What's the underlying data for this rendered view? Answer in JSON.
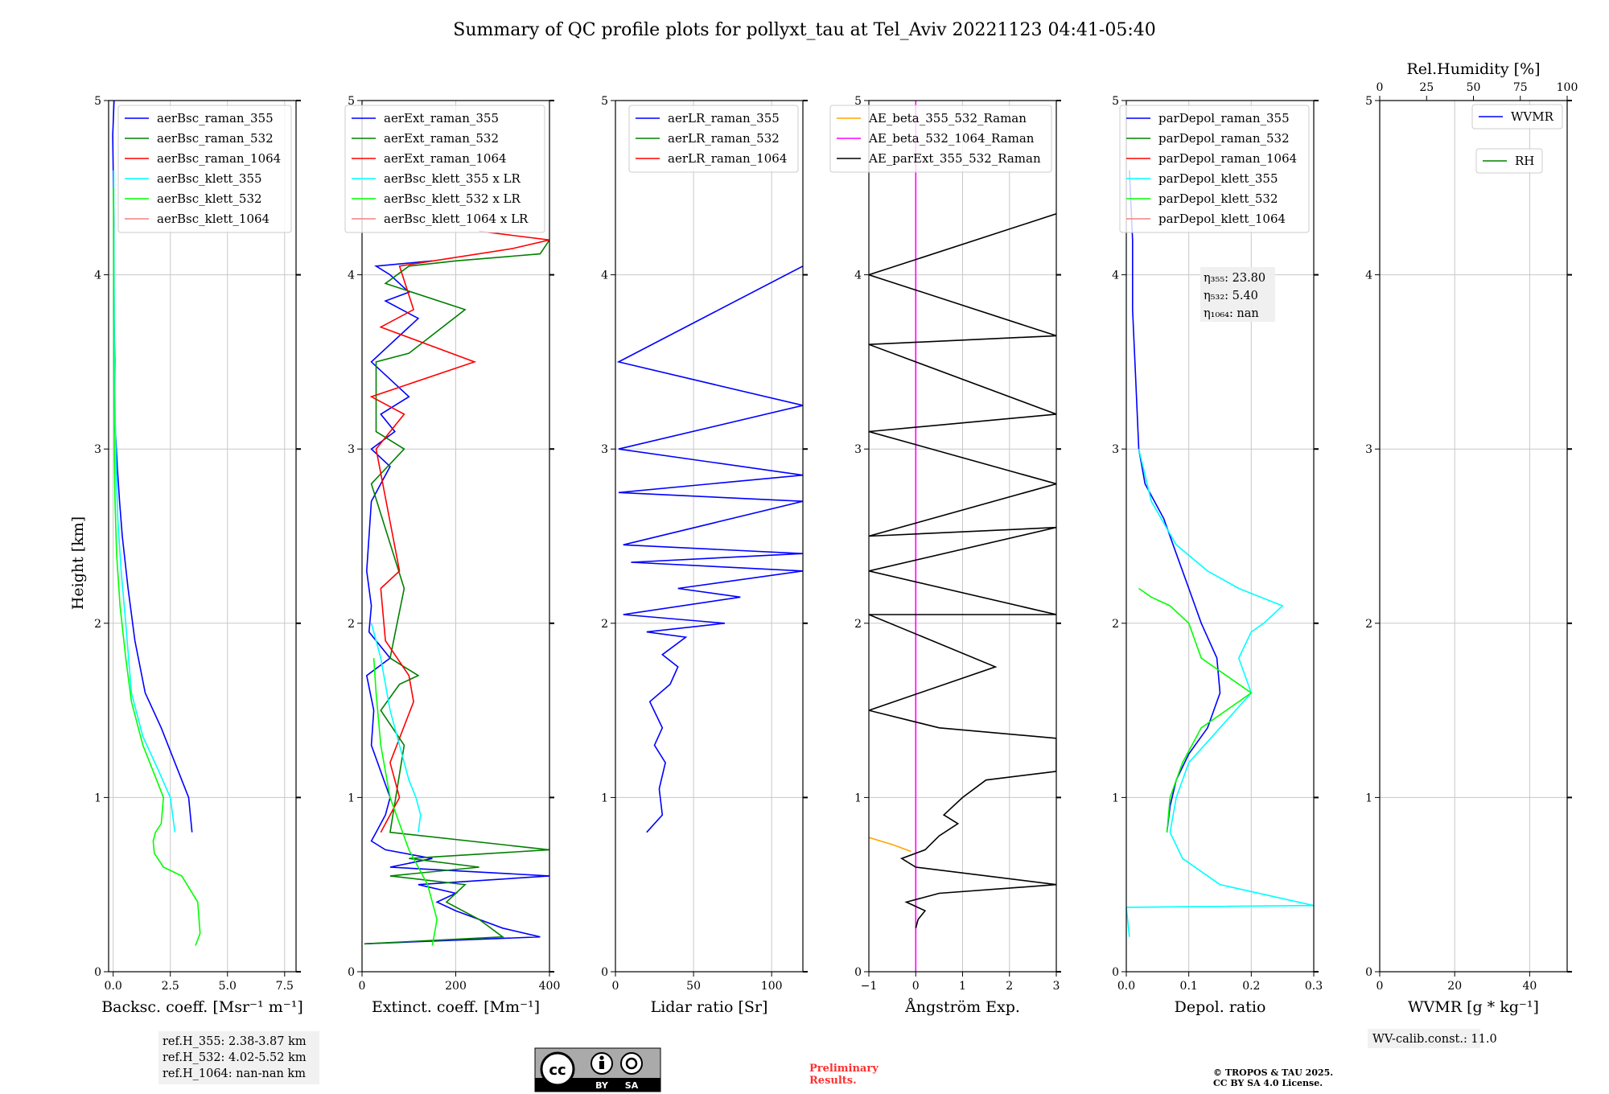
{
  "figure": {
    "title": "Summary of QC profile plots for pollyxt_tau at Tel_Aviv 20221123 04:41-05:40",
    "ylabel": "Height [km]"
  },
  "chart_data": [
    {
      "type": "line",
      "xlabel": "Backsc. coeff. [Msr⁻¹ m⁻¹]",
      "xlim": [
        -0.2,
        8.0
      ],
      "ylim": [
        0,
        5
      ],
      "xticks": [
        0,
        2.5,
        5.0,
        7.5
      ],
      "xtick_labels": [
        "0.0",
        "2.5",
        "5.0",
        "7.5"
      ],
      "yticks": [
        0,
        1,
        2,
        3,
        4,
        5
      ],
      "ytick_labels": [
        "0",
        "1",
        "2",
        "3",
        "4",
        "5"
      ],
      "grid": true,
      "legend_position": "top-right",
      "series": [
        {
          "name": "aerBsc_raman_355",
          "color": "#0000ff",
          "x": [
            3.45,
            3.3,
            2.7,
            2.1,
            1.4,
            0.95,
            0.65,
            0.4,
            0.28,
            0.18,
            0.1,
            0.05,
            0.07,
            0.03,
            0.02,
            0.03,
            0.0,
            -0.02,
            0.04
          ],
          "y": [
            0.8,
            1.0,
            1.2,
            1.4,
            1.6,
            1.9,
            2.2,
            2.5,
            2.7,
            2.9,
            3.1,
            3.3,
            3.5,
            3.8,
            4.0,
            4.3,
            4.6,
            4.8,
            5.0
          ]
        },
        {
          "name": "aerBsc_raman_532",
          "color": "#008000",
          "x": [],
          "y": []
        },
        {
          "name": "aerBsc_raman_1064",
          "color": "#ff0000",
          "x": [],
          "y": []
        },
        {
          "name": "aerBsc_klett_355",
          "color": "#00ffff",
          "x": [
            2.7,
            2.5,
            2.0,
            1.3,
            0.8,
            0.55,
            0.35,
            0.2,
            0.13,
            0.1,
            0.06,
            0.05,
            0.04,
            0.03,
            0.02
          ],
          "y": [
            0.8,
            1.0,
            1.15,
            1.35,
            1.6,
            2.0,
            2.3,
            2.6,
            2.9,
            3.1,
            3.4,
            3.7,
            4.0,
            4.3,
            4.6
          ]
        },
        {
          "name": "aerBsc_klett_532",
          "color": "#00ff00",
          "x": [
            3.6,
            3.8,
            3.7,
            3.0,
            2.2,
            1.8,
            1.75,
            1.85,
            2.1,
            2.2,
            1.9,
            1.3,
            0.8,
            0.55,
            0.3,
            0.15,
            0.08,
            0.05,
            0.03,
            0.02,
            0.01
          ],
          "y": [
            0.15,
            0.22,
            0.4,
            0.55,
            0.6,
            0.68,
            0.75,
            0.8,
            0.85,
            1.0,
            1.1,
            1.3,
            1.55,
            1.8,
            2.1,
            2.4,
            2.7,
            3.0,
            3.5,
            4.0,
            4.5
          ]
        },
        {
          "name": "aerBsc_klett_1064",
          "color": "#f08080",
          "x": [],
          "y": []
        }
      ]
    },
    {
      "type": "line",
      "xlabel": "Extinct. coeff. [Mm⁻¹]",
      "xlim": [
        0,
        400
      ],
      "ylim": [
        0,
        5
      ],
      "xticks": [
        0,
        200,
        400
      ],
      "xtick_labels": [
        "0",
        "200",
        "400"
      ],
      "yticks": [
        0,
        1,
        2,
        3,
        4,
        5
      ],
      "ytick_labels": [
        "0",
        "1",
        "2",
        "3",
        "4",
        "5"
      ],
      "grid": true,
      "legend_position": "top-right",
      "series": [
        {
          "name": "aerExt_raman_355",
          "color": "#0000ff",
          "x": [
            5,
            380,
            300,
            250,
            200,
            160,
            200,
            120,
            400,
            60,
            150,
            50,
            20,
            30,
            50,
            60,
            20,
            25,
            10,
            60,
            15,
            20,
            10,
            15,
            20,
            60,
            20,
            70,
            40,
            100,
            20,
            60,
            120,
            50,
            100,
            80,
            60,
            30,
            150
          ],
          "y": [
            0.16,
            0.2,
            0.25,
            0.3,
            0.35,
            0.4,
            0.45,
            0.5,
            0.55,
            0.6,
            0.65,
            0.7,
            0.75,
            0.8,
            0.9,
            1.0,
            1.3,
            1.5,
            1.7,
            1.8,
            1.95,
            2.1,
            2.3,
            2.5,
            2.7,
            2.9,
            3.0,
            3.1,
            3.2,
            3.3,
            3.5,
            3.6,
            3.75,
            3.85,
            3.9,
            3.95,
            4.0,
            4.05,
            4.08
          ]
        },
        {
          "name": "aerExt_raman_532",
          "color": "#008000",
          "x": [
            5,
            300,
            250,
            180,
            220,
            60,
            250,
            100,
            400,
            60,
            90,
            40,
            80,
            120,
            60,
            90,
            20,
            90,
            30,
            30,
            100,
            220,
            50,
            100,
            200,
            380,
            400
          ],
          "y": [
            0.16,
            0.2,
            0.3,
            0.4,
            0.5,
            0.55,
            0.6,
            0.65,
            0.7,
            0.8,
            1.3,
            1.5,
            1.65,
            1.7,
            1.8,
            2.2,
            2.8,
            3.0,
            3.1,
            3.5,
            3.55,
            3.8,
            3.95,
            4.05,
            4.08,
            4.12,
            4.2
          ]
        },
        {
          "name": "aerExt_raman_1064",
          "color": "#ff0000",
          "x": [
            40,
            80,
            60,
            110,
            100,
            50,
            40,
            80,
            30,
            90,
            20,
            240,
            40,
            110,
            80,
            320,
            400,
            250
          ],
          "y": [
            0.8,
            1.0,
            1.2,
            1.55,
            1.7,
            1.9,
            2.2,
            2.3,
            3.0,
            3.2,
            3.3,
            3.5,
            3.7,
            3.8,
            4.05,
            4.15,
            4.2,
            4.25
          ]
        },
        {
          "name": "aerBsc_klett_355 x LR",
          "color": "#00ffff",
          "x": [
            120,
            125,
            115,
            100,
            80,
            60,
            40,
            20
          ],
          "y": [
            0.8,
            0.9,
            1.0,
            1.1,
            1.3,
            1.5,
            1.8,
            2.0
          ]
        },
        {
          "name": "aerBsc_klett_532 x LR",
          "color": "#00ff00",
          "x": [
            150,
            160,
            140,
            100,
            60,
            40,
            30,
            25
          ],
          "y": [
            0.15,
            0.3,
            0.5,
            0.7,
            1.0,
            1.3,
            1.6,
            1.8
          ]
        },
        {
          "name": "aerBsc_klett_1064 x LR",
          "color": "#f08080",
          "x": [],
          "y": []
        }
      ]
    },
    {
      "type": "line",
      "xlabel": "Lidar ratio [Sr]",
      "xlim": [
        0,
        120
      ],
      "ylim": [
        0,
        5
      ],
      "xticks": [
        0,
        50,
        100
      ],
      "xtick_labels": [
        "0",
        "50",
        "100"
      ],
      "yticks": [
        0,
        1,
        2,
        3,
        4,
        5
      ],
      "ytick_labels": [
        "0",
        "1",
        "2",
        "3",
        "4",
        "5"
      ],
      "grid": true,
      "legend_position": "top-right",
      "series": [
        {
          "name": "aerLR_raman_355",
          "color": "#0000ff",
          "x": [
            20,
            30,
            28,
            32,
            25,
            30,
            22,
            35,
            40,
            30,
            45,
            20,
            70,
            5,
            80,
            40,
            120,
            10,
            120,
            5,
            120,
            2,
            120,
            2,
            120,
            2,
            120
          ],
          "y": [
            0.8,
            0.9,
            1.05,
            1.2,
            1.3,
            1.4,
            1.55,
            1.65,
            1.75,
            1.82,
            1.92,
            1.95,
            2.0,
            2.05,
            2.15,
            2.2,
            2.3,
            2.35,
            2.4,
            2.45,
            2.7,
            2.75,
            2.85,
            3.0,
            3.25,
            3.5,
            4.05
          ]
        },
        {
          "name": "aerLR_raman_532",
          "color": "#008000",
          "x": [],
          "y": []
        },
        {
          "name": "aerLR_raman_1064",
          "color": "#ff0000",
          "x": [],
          "y": []
        }
      ]
    },
    {
      "type": "line",
      "xlabel": "Ångström Exp.",
      "xlim": [
        -1,
        3
      ],
      "ylim": [
        0,
        5
      ],
      "xticks": [
        -1,
        0,
        1,
        2,
        3
      ],
      "xtick_labels": [
        "−1",
        "0",
        "1",
        "2",
        "3"
      ],
      "yticks": [
        0,
        1,
        2,
        3,
        4,
        5
      ],
      "ytick_labels": [
        "0",
        "1",
        "2",
        "3",
        "4",
        "5"
      ],
      "grid": true,
      "legend_position": "top-right",
      "series": [
        {
          "name": "AE_beta_355_532_Raman",
          "color": "#ffa500",
          "x": [
            -1.0,
            -0.5,
            -0.1
          ],
          "y": [
            0.77,
            0.73,
            0.69
          ]
        },
        {
          "name": "AE_beta_532_1064_Raman",
          "color": "#ff00ff",
          "x": [
            0.0,
            0.0
          ],
          "y": [
            0.0,
            5.0
          ]
        },
        {
          "name": "AE_parExt_355_532_Raman",
          "color": "#000000",
          "x": [
            0.0,
            0.05,
            0.2,
            -0.2,
            0.5,
            3.0,
            0.0,
            -0.3,
            0.2,
            0.5,
            0.9,
            0.6,
            1.0,
            1.5,
            3.0,
            3.0,
            0.5,
            -1.0,
            1.7,
            -1.0,
            3.0,
            -1.0,
            3.0,
            -1.0,
            3.0,
            -1.0,
            3.0,
            -1.0,
            3.0,
            -1.0,
            3.0
          ],
          "y": [
            0.25,
            0.3,
            0.35,
            0.4,
            0.45,
            0.5,
            0.6,
            0.65,
            0.7,
            0.78,
            0.85,
            0.9,
            1.0,
            1.1,
            1.15,
            1.34,
            1.4,
            1.5,
            1.75,
            2.05,
            2.05,
            2.3,
            2.55,
            2.5,
            2.8,
            3.1,
            3.2,
            3.6,
            3.65,
            4.0,
            4.35
          ]
        }
      ]
    },
    {
      "type": "line",
      "xlabel": "Depol. ratio",
      "xlim": [
        0,
        0.3
      ],
      "ylim": [
        0,
        5
      ],
      "xticks": [
        0,
        0.1,
        0.2,
        0.3
      ],
      "xtick_labels": [
        "0.0",
        "0.1",
        "0.2",
        "0.3"
      ],
      "yticks": [
        0,
        1,
        2,
        3,
        4,
        5
      ],
      "ytick_labels": [
        "0",
        "1",
        "2",
        "3",
        "4",
        "5"
      ],
      "grid": true,
      "legend_position": "top-right",
      "series": [
        {
          "name": "parDepol_raman_355",
          "color": "#0000ff",
          "x": [
            0.065,
            0.07,
            0.08,
            0.1,
            0.13,
            0.15,
            0.145,
            0.12,
            0.1,
            0.08,
            0.06,
            0.03,
            0.02,
            0.015,
            0.01,
            0.01,
            0.005
          ],
          "y": [
            0.8,
            0.95,
            1.1,
            1.25,
            1.4,
            1.6,
            1.8,
            2.0,
            2.2,
            2.4,
            2.6,
            2.8,
            3.0,
            3.4,
            3.8,
            4.2,
            4.6
          ]
        },
        {
          "name": "parDepol_raman_532",
          "color": "#008000",
          "x": [],
          "y": []
        },
        {
          "name": "parDepol_raman_1064",
          "color": "#ff0000",
          "x": [],
          "y": []
        },
        {
          "name": "parDepol_klett_355",
          "color": "#00ffff",
          "x": [
            0.005,
            0.0,
            0.3,
            0.15,
            0.09,
            0.07,
            0.08,
            0.1,
            0.15,
            0.2,
            0.18,
            0.2,
            0.22,
            0.25,
            0.18,
            0.13,
            0.08,
            0.04,
            0.02
          ],
          "y": [
            0.2,
            0.37,
            0.38,
            0.5,
            0.65,
            0.8,
            1.0,
            1.2,
            1.4,
            1.6,
            1.8,
            1.95,
            2.0,
            2.1,
            2.2,
            2.3,
            2.45,
            2.7,
            3.0
          ]
        },
        {
          "name": "parDepol_klett_532",
          "color": "#00ff00",
          "x": [
            0.065,
            0.07,
            0.09,
            0.12,
            0.16,
            0.2,
            0.16,
            0.12,
            0.1,
            0.07,
            0.04,
            0.02
          ],
          "y": [
            0.8,
            1.0,
            1.2,
            1.4,
            1.5,
            1.6,
            1.7,
            1.8,
            2.0,
            2.1,
            2.15,
            2.2
          ]
        },
        {
          "name": "parDepol_klett_1064",
          "color": "#f08080",
          "x": [],
          "y": []
        }
      ]
    },
    {
      "type": "line",
      "xlabel": "WVMR [g * kg⁻¹]",
      "xlim": [
        0,
        50
      ],
      "ylim": [
        0,
        5
      ],
      "xticks": [
        0,
        20,
        40
      ],
      "xtick_labels": [
        "0",
        "20",
        "40"
      ],
      "x2label": "Rel.Humidity [%]",
      "x2lim": [
        0,
        100
      ],
      "x2ticks": [
        0,
        25,
        50,
        75,
        100
      ],
      "x2tick_labels": [
        "0",
        "25",
        "50",
        "75",
        "100"
      ],
      "yticks": [
        0,
        1,
        2,
        3,
        4,
        5
      ],
      "ytick_labels": [
        "0",
        "1",
        "2",
        "3",
        "4",
        "5"
      ],
      "grid": true,
      "legend_position": "top-right",
      "series": [
        {
          "name": "WVMR",
          "color": "#0000ff",
          "x": [],
          "y": []
        },
        {
          "name": "RH",
          "color": "#008000",
          "x": [],
          "y": []
        }
      ]
    }
  ],
  "annotations": {
    "ref_heights": [
      "ref.H_355: 2.38-3.87 km",
      "ref.H_532: 4.02-5.52 km",
      "ref.H_1064: nan-nan km"
    ],
    "eta": [
      "η₃₅₅: 23.80",
      "η₅₃₂: 5.40",
      "η₁₀₆₄: nan"
    ],
    "wv_calib": "WV-calib.const.: 11.0",
    "license_badge": {
      "left": "cc",
      "by": "BY",
      "sa": "SA"
    },
    "preliminary": [
      "Preliminary",
      "Results."
    ],
    "copyright": [
      "© TROPOS & TAU 2025.",
      "CC BY SA 4.0 License."
    ]
  }
}
